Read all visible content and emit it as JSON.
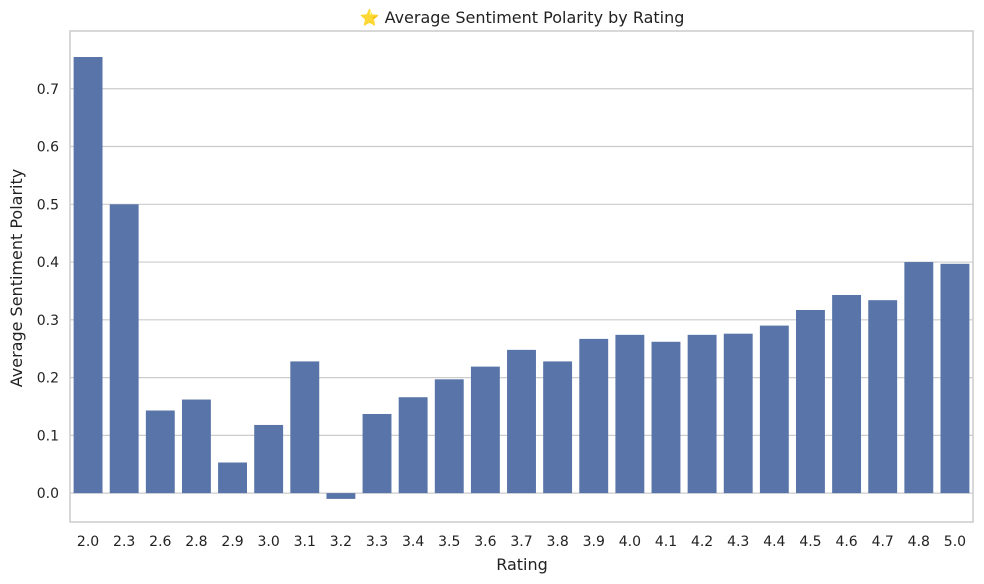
{
  "chart_data": {
    "type": "bar",
    "title": "⭐ Average Sentiment Polarity by Rating",
    "xlabel": "Rating",
    "ylabel": "Average Sentiment Polarity",
    "categories": [
      "2.0",
      "2.3",
      "2.6",
      "2.8",
      "2.9",
      "3.0",
      "3.1",
      "3.2",
      "3.3",
      "3.4",
      "3.5",
      "3.6",
      "3.7",
      "3.8",
      "3.9",
      "4.0",
      "4.1",
      "4.2",
      "4.3",
      "4.4",
      "4.5",
      "4.6",
      "4.7",
      "4.8",
      "5.0"
    ],
    "values": [
      0.755,
      0.5,
      0.143,
      0.162,
      0.053,
      0.118,
      0.228,
      -0.01,
      0.137,
      0.166,
      0.197,
      0.219,
      0.248,
      0.228,
      0.267,
      0.274,
      0.262,
      0.274,
      0.276,
      0.29,
      0.317,
      0.343,
      0.334,
      0.4,
      0.397
    ],
    "ylim": [
      -0.05,
      0.8
    ],
    "yticks": [
      0.0,
      0.1,
      0.2,
      0.3,
      0.4,
      0.5,
      0.6,
      0.7
    ],
    "bar_color": "#5874a8",
    "grid": true,
    "legend": "none"
  }
}
